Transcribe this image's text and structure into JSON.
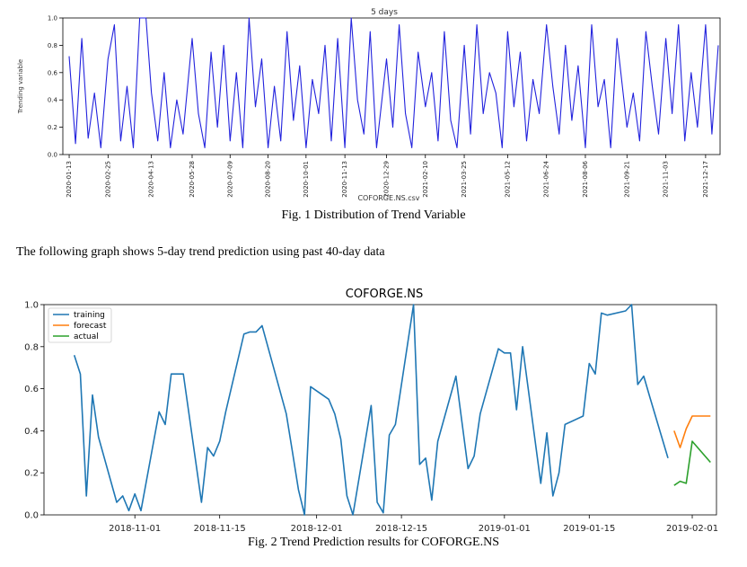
{
  "figure1": {
    "caption": "Fig. 1 Distribution of Trend Variable"
  },
  "body_text": "The following graph shows 5-day trend prediction using past 40-day data",
  "figure2": {
    "caption": "Fig. 2 Trend Prediction results for COFORGE.NS"
  },
  "colors": {
    "fig1_line": "#2222dd",
    "training": "#1f77b4",
    "forecast": "#ff7f0e",
    "actual": "#2ca02c"
  },
  "chart_data": [
    {
      "type": "line",
      "title": "5 days",
      "xlabel": "COFORGE.NS.csv",
      "ylabel": "Trending variable",
      "ylim": [
        0.0,
        1.0
      ],
      "yticks": [
        "0.0",
        "0.2",
        "0.4",
        "0.6",
        "0.8",
        "1.0"
      ],
      "xlim": [
        "2020-01-06",
        "2022-01-02"
      ],
      "xticks": [
        "2020-01-13",
        "2020-02-25",
        "2020-04-13",
        "2020-05-28",
        "2020-07-09",
        "2020-08-20",
        "2020-10-01",
        "2020-11-13",
        "2020-12-29",
        "2021-02-10",
        "2021-03-25",
        "2021-05-12",
        "2021-06-24",
        "2021-08-06",
        "2021-09-21",
        "2021-11-03",
        "2021-12-17"
      ],
      "series": [
        {
          "x": [
            "2020-01-13",
            "2020-01-20",
            "2020-01-27",
            "2020-02-03",
            "2020-02-10",
            "2020-02-17",
            "2020-02-25",
            "2020-03-03",
            "2020-03-10",
            "2020-03-17",
            "2020-03-24",
            "2020-03-31",
            "2020-04-07",
            "2020-04-13",
            "2020-04-20",
            "2020-04-27",
            "2020-05-04",
            "2020-05-11",
            "2020-05-18",
            "2020-05-28",
            "2020-06-04",
            "2020-06-11",
            "2020-06-18",
            "2020-06-25",
            "2020-07-02",
            "2020-07-09",
            "2020-07-16",
            "2020-07-23",
            "2020-07-30",
            "2020-08-06",
            "2020-08-13",
            "2020-08-20",
            "2020-08-27",
            "2020-09-03",
            "2020-09-10",
            "2020-09-17",
            "2020-09-24",
            "2020-10-01",
            "2020-10-08",
            "2020-10-15",
            "2020-10-22",
            "2020-10-29",
            "2020-11-05",
            "2020-11-13",
            "2020-11-20",
            "2020-11-27",
            "2020-12-04",
            "2020-12-11",
            "2020-12-18",
            "2020-12-29",
            "2021-01-05",
            "2021-01-12",
            "2021-01-19",
            "2021-01-26",
            "2021-02-02",
            "2021-02-10",
            "2021-02-17",
            "2021-02-24",
            "2021-03-03",
            "2021-03-10",
            "2021-03-17",
            "2021-03-25",
            "2021-04-01",
            "2021-04-08",
            "2021-04-15",
            "2021-04-22",
            "2021-04-29",
            "2021-05-06",
            "2021-05-12",
            "2021-05-19",
            "2021-05-26",
            "2021-06-02",
            "2021-06-09",
            "2021-06-16",
            "2021-06-24",
            "2021-07-01",
            "2021-07-08",
            "2021-07-15",
            "2021-07-22",
            "2021-07-29",
            "2021-08-06",
            "2021-08-13",
            "2021-08-20",
            "2021-08-27",
            "2021-09-03",
            "2021-09-10",
            "2021-09-21",
            "2021-09-28",
            "2021-10-05",
            "2021-10-12",
            "2021-10-19",
            "2021-10-26",
            "2021-11-03",
            "2021-11-10",
            "2021-11-17",
            "2021-11-24",
            "2021-12-01",
            "2021-12-08",
            "2021-12-17",
            "2021-12-24",
            "2021-12-31"
          ],
          "y": [
            0.72,
            0.08,
            0.85,
            0.12,
            0.45,
            0.05,
            0.7,
            0.95,
            0.1,
            0.5,
            0.05,
            1.0,
            1.0,
            0.45,
            0.1,
            0.6,
            0.05,
            0.4,
            0.15,
            0.85,
            0.3,
            0.05,
            0.75,
            0.2,
            0.8,
            0.1,
            0.6,
            0.05,
            1.0,
            0.35,
            0.7,
            0.05,
            0.5,
            0.1,
            0.9,
            0.25,
            0.65,
            0.05,
            0.55,
            0.3,
            0.8,
            0.1,
            0.85,
            0.05,
            1.0,
            0.4,
            0.15,
            0.9,
            0.05,
            0.7,
            0.2,
            0.95,
            0.3,
            0.05,
            0.75,
            0.35,
            0.6,
            0.1,
            0.9,
            0.25,
            0.05,
            0.8,
            0.15,
            0.95,
            0.3,
            0.6,
            0.45,
            0.05,
            0.9,
            0.35,
            0.75,
            0.1,
            0.55,
            0.3,
            0.95,
            0.5,
            0.15,
            0.8,
            0.25,
            0.65,
            0.05,
            0.95,
            0.35,
            0.55,
            0.05,
            0.85,
            0.2,
            0.45,
            0.1,
            0.9,
            0.5,
            0.15,
            0.85,
            0.3,
            0.95,
            0.1,
            0.6,
            0.2,
            0.95,
            0.15,
            0.8
          ]
        }
      ]
    },
    {
      "type": "line",
      "title": "COFORGE.NS",
      "xlabel": "",
      "ylabel": "",
      "ylim": [
        0.0,
        1.0
      ],
      "yticks": [
        "0.0",
        "0.2",
        "0.4",
        "0.6",
        "0.8",
        "1.0"
      ],
      "xlim": [
        "2018-10-17",
        "2019-02-05"
      ],
      "xticks": [
        "2018-11-01",
        "2018-11-15",
        "2018-12-01",
        "2018-12-15",
        "2019-01-01",
        "2019-01-15",
        "2019-02-01"
      ],
      "legend": "top-left",
      "series": [
        {
          "name": "training",
          "x": [
            "2018-10-22",
            "2018-10-23",
            "2018-10-24",
            "2018-10-25",
            "2018-10-26",
            "2018-10-29",
            "2018-10-30",
            "2018-10-31",
            "2018-11-01",
            "2018-11-02",
            "2018-11-05",
            "2018-11-06",
            "2018-11-07",
            "2018-11-09",
            "2018-11-12",
            "2018-11-13",
            "2018-11-14",
            "2018-11-15",
            "2018-11-16",
            "2018-11-19",
            "2018-11-20",
            "2018-11-21",
            "2018-11-22",
            "2018-11-26",
            "2018-11-27",
            "2018-11-28",
            "2018-11-29",
            "2018-11-30",
            "2018-12-03",
            "2018-12-04",
            "2018-12-05",
            "2018-12-06",
            "2018-12-07",
            "2018-12-10",
            "2018-12-11",
            "2018-12-12",
            "2018-12-13",
            "2018-12-14",
            "2018-12-17",
            "2018-12-18",
            "2018-12-19",
            "2018-12-20",
            "2018-12-21",
            "2018-12-24",
            "2018-12-26",
            "2018-12-27",
            "2018-12-28",
            "2018-12-31",
            "2019-01-01",
            "2019-01-02",
            "2019-01-03",
            "2019-01-04",
            "2019-01-07",
            "2019-01-08",
            "2019-01-09",
            "2019-01-10",
            "2019-01-11",
            "2019-01-14",
            "2019-01-15",
            "2019-01-16",
            "2019-01-17",
            "2019-01-18",
            "2019-01-21",
            "2019-01-22",
            "2019-01-23",
            "2019-01-24",
            "2019-01-25",
            "2019-01-28"
          ],
          "y": [
            0.76,
            0.67,
            0.09,
            0.57,
            0.37,
            0.06,
            0.09,
            0.02,
            0.1,
            0.02,
            0.49,
            0.43,
            0.67,
            0.67,
            0.06,
            0.32,
            0.28,
            0.35,
            0.49,
            0.86,
            0.87,
            0.87,
            0.9,
            0.48,
            0.3,
            0.12,
            0.0,
            0.61,
            0.55,
            0.48,
            0.36,
            0.09,
            0.0,
            0.52,
            0.06,
            0.01,
            0.38,
            0.43,
            1.0,
            0.24,
            0.27,
            0.07,
            0.35,
            0.66,
            0.22,
            0.28,
            0.48,
            0.79,
            0.77,
            0.77,
            0.5,
            0.8,
            0.15,
            0.39,
            0.09,
            0.2,
            0.43,
            0.47,
            0.72,
            0.67,
            0.96,
            0.95,
            0.97,
            1.0,
            0.62,
            0.66,
            0.56,
            0.27
          ]
        },
        {
          "name": "forecast",
          "x": [
            "2019-01-29",
            "2019-01-30",
            "2019-01-31",
            "2019-02-01",
            "2019-02-04"
          ],
          "y": [
            0.4,
            0.32,
            0.41,
            0.47,
            0.47
          ]
        },
        {
          "name": "actual",
          "x": [
            "2019-01-29",
            "2019-01-30",
            "2019-01-31",
            "2019-02-01",
            "2019-02-04"
          ],
          "y": [
            0.14,
            0.16,
            0.15,
            0.35,
            0.25
          ]
        }
      ]
    }
  ]
}
